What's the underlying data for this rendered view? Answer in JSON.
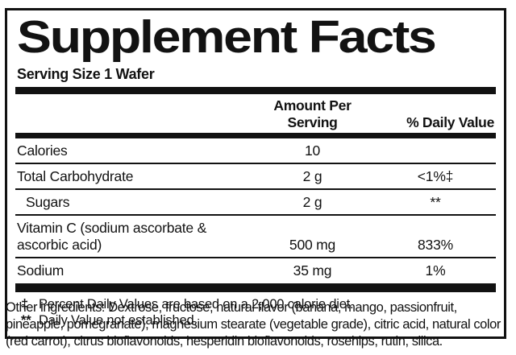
{
  "label": {
    "title": "Supplement Facts",
    "serving_size": "Serving Size 1 Wafer",
    "columns": {
      "amount": "Amount Per Serving",
      "daily_value": "% Daily Value"
    },
    "rows": [
      {
        "name": "Calories",
        "amount": "10",
        "dv": "",
        "indent": false
      },
      {
        "name": "Total Carbohydrate",
        "amount": "2 g",
        "dv": "<1%‡",
        "indent": false
      },
      {
        "name": "Sugars",
        "amount": "2 g",
        "dv": "**",
        "indent": true
      },
      {
        "name": "Vitamin C (sodium ascorbate & ascorbic acid)",
        "amount": "500 mg",
        "dv": "833%",
        "indent": false
      },
      {
        "name": "Sodium",
        "amount": "35 mg",
        "dv": "1%",
        "indent": false
      }
    ],
    "footnotes": [
      {
        "symbol": "‡",
        "text": "Percent Daily Values are based on a 2,000 calorie diet."
      },
      {
        "symbol": "**",
        "text": "Daily Value not established."
      }
    ],
    "other_ingredients": "Other ingredients: Dextrose, fructose, natural flavor (banana, mango, passionfruit, pineapple, pomegranate), magnesium stearate (vegetable grade), citric acid, natural color (red carrot), citrus bioflavonoids, hesperidin bioflavonoids, rosehips, rutin, silica."
  },
  "colors": {
    "ink": "#121212",
    "background": "#ffffff"
  }
}
